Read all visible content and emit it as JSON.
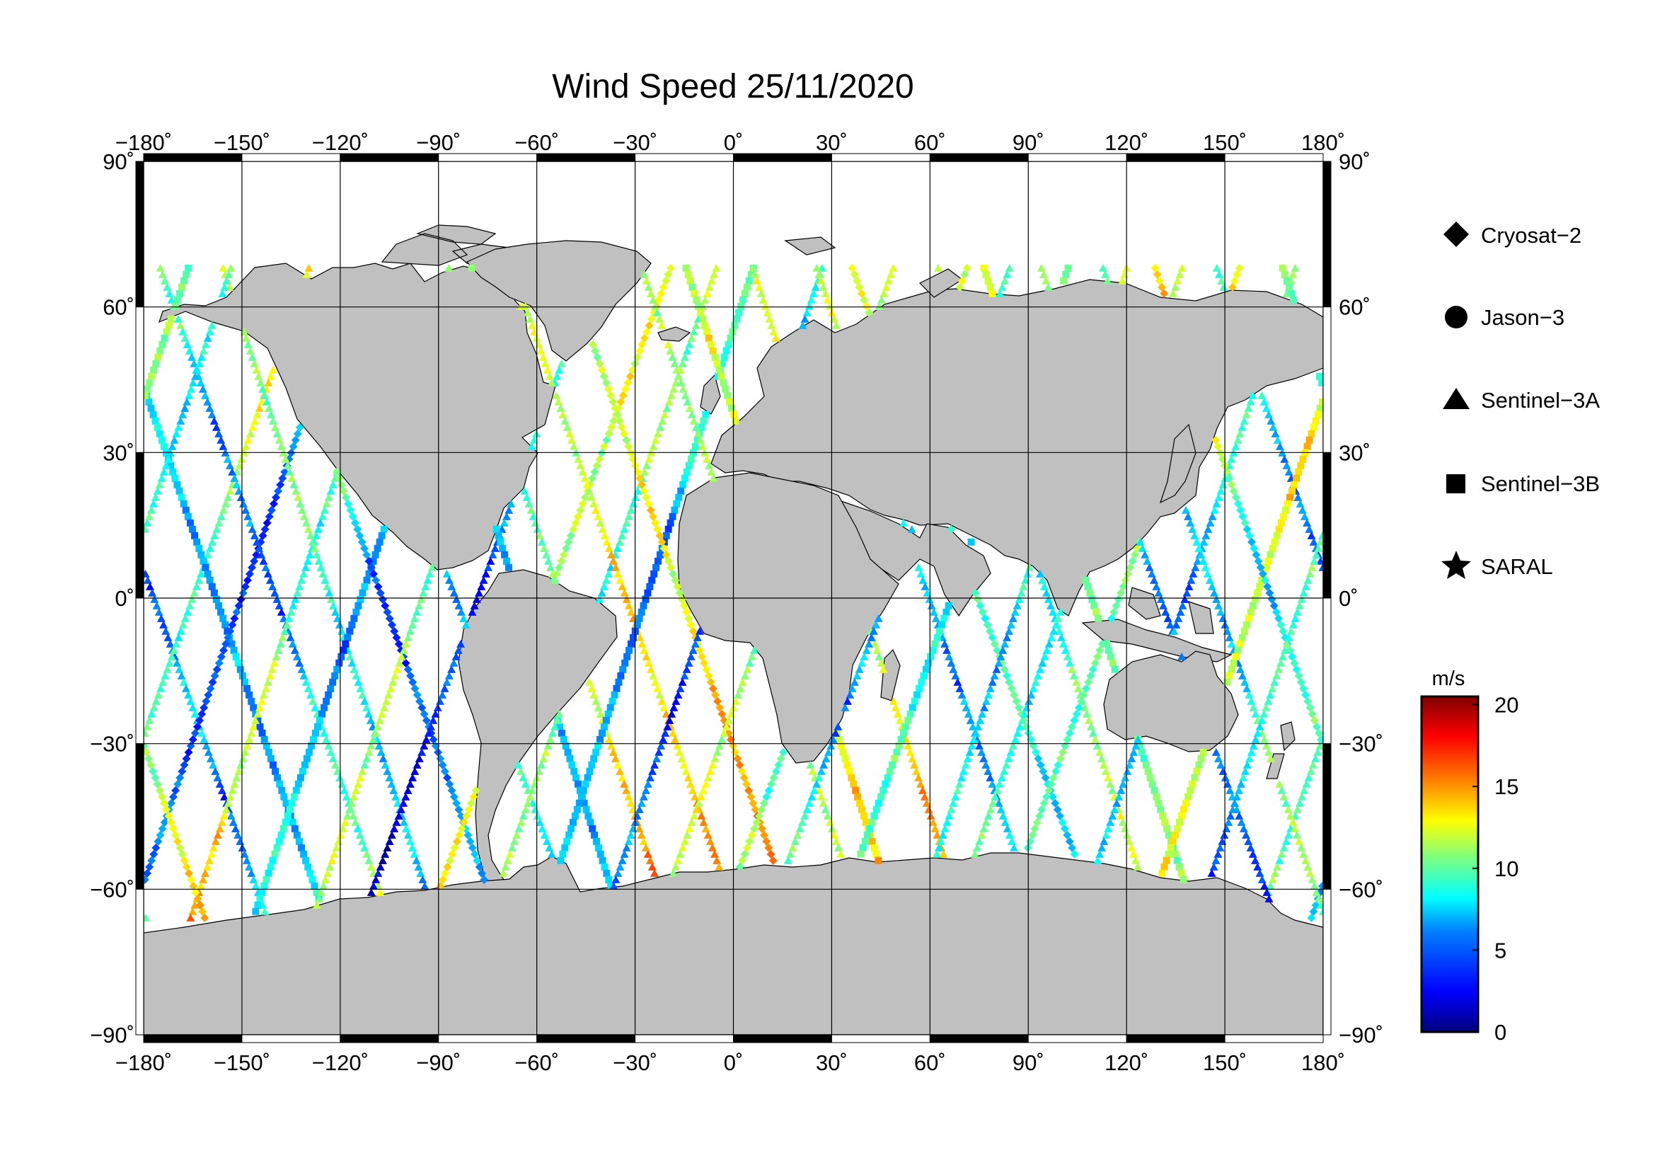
{
  "title": "Wind Speed 25/11/2020",
  "lon_ticks": [
    "−180˚",
    "−150˚",
    "−120˚",
    "−90˚",
    "−60˚",
    "−30˚",
    "0˚",
    "30˚",
    "60˚",
    "90˚",
    "120˚",
    "150˚",
    "180˚"
  ],
  "lat_ticks": [
    "90˚",
    "60˚",
    "30˚",
    "0˚",
    "−30˚",
    "−60˚",
    "−90˚"
  ],
  "legend": {
    "items": [
      {
        "label": "Cryosat−2",
        "icon": "diamond-icon"
      },
      {
        "label": "Jason−3",
        "icon": "circle-icon"
      },
      {
        "label": "Sentinel−3A",
        "icon": "triangle-icon"
      },
      {
        "label": "Sentinel−3B",
        "icon": "square-icon"
      },
      {
        "label": "SARAL",
        "icon": "star-icon"
      }
    ]
  },
  "colorbar": {
    "unit": "m/s",
    "ticks": [
      "20",
      "15",
      "10",
      "5",
      "0"
    ],
    "range": [
      0,
      20.5
    ],
    "colormap": [
      "#00007f",
      "#0000ff",
      "#007fff",
      "#00ffff",
      "#7fff7f",
      "#ffff00",
      "#ff7f00",
      "#ff0000",
      "#7f0000"
    ]
  },
  "colors": {
    "land": "#c0c0c0",
    "ocean": "#ffffff",
    "frame": "#000000"
  }
}
